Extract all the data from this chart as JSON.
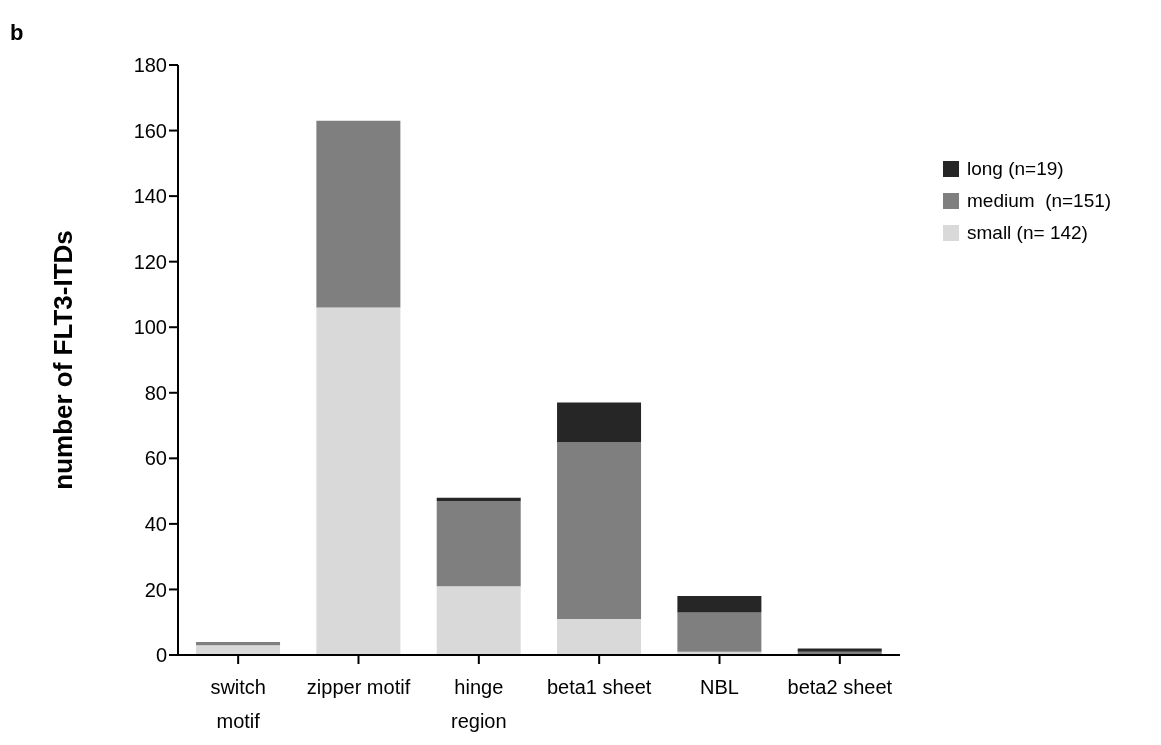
{
  "chart_data": {
    "type": "bar",
    "title": "b",
    "ylabel": "number of FLT3-ITDs",
    "categories": [
      "switch motif",
      "zipper motif",
      "hinge region",
      "beta1 sheet",
      "NBL",
      "beta2 sheet"
    ],
    "stacked": true,
    "series": [
      {
        "name": "small (n= 142)",
        "color": "#d9d9d9",
        "values": [
          3,
          106,
          21,
          11,
          1,
          0
        ]
      },
      {
        "name": "medium  (n=151)",
        "color": "#7f7f7f",
        "values": [
          1,
          57,
          26,
          54,
          12,
          1
        ]
      },
      {
        "name": "long (n=19)",
        "color": "#262626",
        "values": [
          0,
          0,
          1,
          12,
          5,
          1
        ]
      }
    ],
    "ylim": [
      0,
      180
    ],
    "yticks": [
      0,
      20,
      40,
      60,
      80,
      100,
      120,
      140,
      160,
      180
    ],
    "grid": false,
    "legend": "right"
  }
}
